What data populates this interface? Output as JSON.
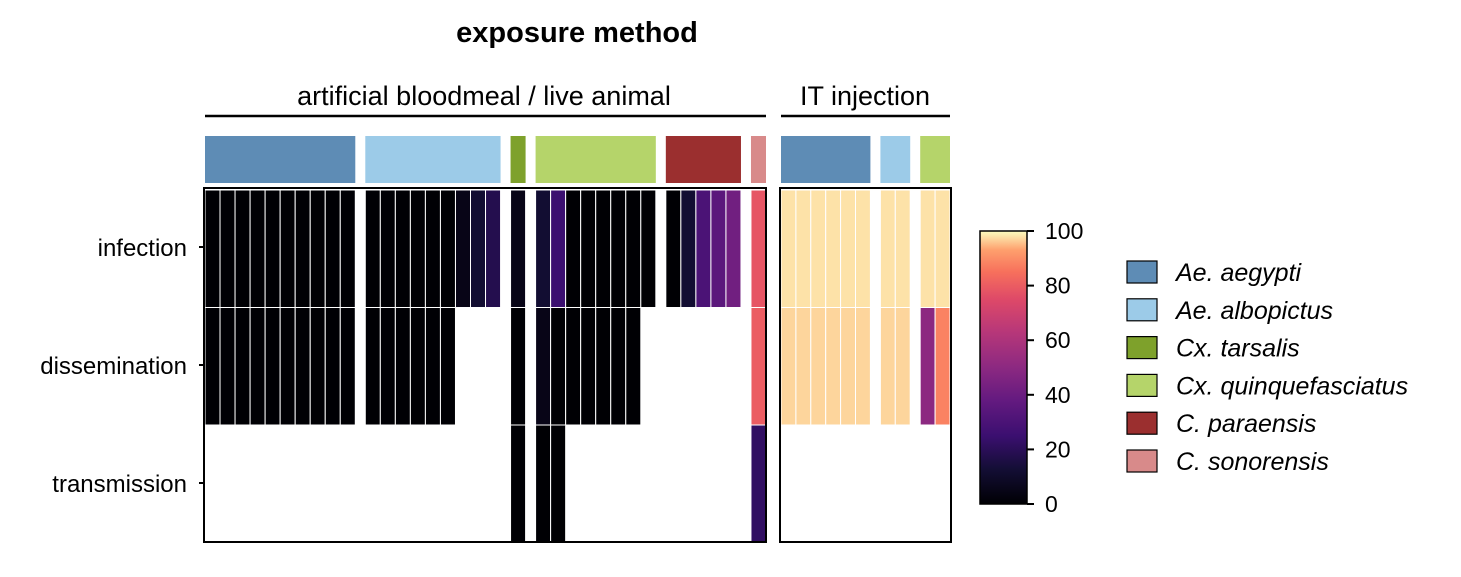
{
  "colors": {
    "species": {
      "Ae. aegypti": "#5e8cb5",
      "Ae. albopictus": "#9ccbe8",
      "Cx. tarsalis": "#7ea12b",
      "Cx. quinquefasciatus": "#b5d46a",
      "C. paraensis": "#9b2f2f",
      "C. sonorensis": "#d88a8a"
    }
  },
  "chart_data": {
    "type": "heatmap",
    "title": "exposure method",
    "row_labels": [
      "infection",
      "dissemination",
      "transmission"
    ],
    "colorbar": {
      "min": 0,
      "max": 100,
      "ticks": [
        0,
        20,
        40,
        60,
        80,
        100
      ],
      "colormap": "magma"
    },
    "groups": [
      {
        "name": "artificial bloodmeal / live animal",
        "species_blocks": [
          {
            "species": "Ae. aegypti",
            "columns": 10
          },
          {
            "species": "Ae. albopictus",
            "columns": 9
          },
          {
            "species": "Cx. tarsalis",
            "columns": 1
          },
          {
            "species": "Cx. quinquefasciatus",
            "columns": 8
          },
          {
            "species": "C. paraensis",
            "columns": 5
          },
          {
            "species": "C. sonorensis",
            "columns": 1
          }
        ],
        "columns": [
          {
            "species": "Ae. aegypti",
            "values": [
              0,
              0,
              null
            ]
          },
          {
            "species": "Ae. aegypti",
            "values": [
              0,
              0,
              null
            ]
          },
          {
            "species": "Ae. aegypti",
            "values": [
              0,
              0,
              null
            ]
          },
          {
            "species": "Ae. aegypti",
            "values": [
              0,
              0,
              null
            ]
          },
          {
            "species": "Ae. aegypti",
            "values": [
              0,
              0,
              null
            ]
          },
          {
            "species": "Ae. aegypti",
            "values": [
              0,
              0,
              null
            ]
          },
          {
            "species": "Ae. aegypti",
            "values": [
              0,
              0,
              null
            ]
          },
          {
            "species": "Ae. aegypti",
            "values": [
              0,
              0,
              null
            ]
          },
          {
            "species": "Ae. aegypti",
            "values": [
              0,
              0,
              null
            ]
          },
          {
            "species": "Ae. aegypti",
            "values": [
              0,
              0,
              null
            ]
          },
          {
            "species": "Ae. albopictus",
            "values": [
              0,
              0,
              null
            ]
          },
          {
            "species": "Ae. albopictus",
            "values": [
              0,
              0,
              null
            ]
          },
          {
            "species": "Ae. albopictus",
            "values": [
              0,
              0,
              null
            ]
          },
          {
            "species": "Ae. albopictus",
            "values": [
              0,
              0,
              null
            ]
          },
          {
            "species": "Ae. albopictus",
            "values": [
              0,
              0,
              null
            ]
          },
          {
            "species": "Ae. albopictus",
            "values": [
              0,
              0,
              null
            ]
          },
          {
            "species": "Ae. albopictus",
            "values": [
              5,
              null,
              null
            ]
          },
          {
            "species": "Ae. albopictus",
            "values": [
              12,
              null,
              null
            ]
          },
          {
            "species": "Ae. albopictus",
            "values": [
              18,
              null,
              null
            ]
          },
          {
            "species": "Cx. tarsalis",
            "values": [
              5,
              0,
              0
            ]
          },
          {
            "species": "Cx. quinquefasciatus",
            "values": [
              12,
              5,
              0
            ]
          },
          {
            "species": "Cx. quinquefasciatus",
            "values": [
              25,
              0,
              0
            ]
          },
          {
            "species": "Cx. quinquefasciatus",
            "values": [
              0,
              0,
              null
            ]
          },
          {
            "species": "Cx. quinquefasciatus",
            "values": [
              0,
              0,
              null
            ]
          },
          {
            "species": "Cx. quinquefasciatus",
            "values": [
              0,
              0,
              null
            ]
          },
          {
            "species": "Cx. quinquefasciatus",
            "values": [
              0,
              0,
              null
            ]
          },
          {
            "species": "Cx. quinquefasciatus",
            "values": [
              0,
              0,
              null
            ]
          },
          {
            "species": "Cx. quinquefasciatus",
            "values": [
              0,
              null,
              null
            ]
          },
          {
            "species": "C. paraensis",
            "values": [
              0,
              null,
              null
            ]
          },
          {
            "species": "C. paraensis",
            "values": [
              12,
              null,
              null
            ]
          },
          {
            "species": "C. paraensis",
            "values": [
              30,
              null,
              null
            ]
          },
          {
            "species": "C. paraensis",
            "values": [
              35,
              null,
              null
            ]
          },
          {
            "species": "C. paraensis",
            "values": [
              42,
              null,
              null
            ]
          },
          {
            "species": "C. sonorensis",
            "values": [
              78,
              80,
              22
            ]
          }
        ]
      },
      {
        "name": "IT injection",
        "species_blocks": [
          {
            "species": "Ae. aegypti",
            "columns": 6
          },
          {
            "species": "Ae. albopictus",
            "columns": 2
          },
          {
            "species": "Cx. quinquefasciatus",
            "columns": 2
          }
        ],
        "columns": [
          {
            "species": "Ae. aegypti",
            "values": [
              98,
              97,
              null
            ]
          },
          {
            "species": "Ae. aegypti",
            "values": [
              98,
              97,
              null
            ]
          },
          {
            "species": "Ae. aegypti",
            "values": [
              98,
              97,
              null
            ]
          },
          {
            "species": "Ae. aegypti",
            "values": [
              98,
              97,
              null
            ]
          },
          {
            "species": "Ae. aegypti",
            "values": [
              98,
              97,
              null
            ]
          },
          {
            "species": "Ae. aegypti",
            "values": [
              98,
              97,
              null
            ]
          },
          {
            "species": "Ae. albopictus",
            "values": [
              98,
              97,
              null
            ]
          },
          {
            "species": "Ae. albopictus",
            "values": [
              98,
              97,
              null
            ]
          },
          {
            "species": "Cx. quinquefasciatus",
            "values": [
              98,
              50,
              null
            ]
          },
          {
            "species": "Cx. quinquefasciatus",
            "values": [
              98,
              88,
              null
            ]
          }
        ]
      }
    ],
    "legend": [
      {
        "label": "Ae. aegypti",
        "species": "Ae. aegypti"
      },
      {
        "label": "Ae. albopictus",
        "species": "Ae. albopictus"
      },
      {
        "label": "Cx. tarsalis",
        "species": "Cx. tarsalis"
      },
      {
        "label": "Cx. quinquefasciatus",
        "species": "Cx. quinquefasciatus"
      },
      {
        "label": "C. paraensis",
        "species": "C. paraensis"
      },
      {
        "label": "C. sonorensis",
        "species": "C. sonorensis"
      }
    ]
  }
}
